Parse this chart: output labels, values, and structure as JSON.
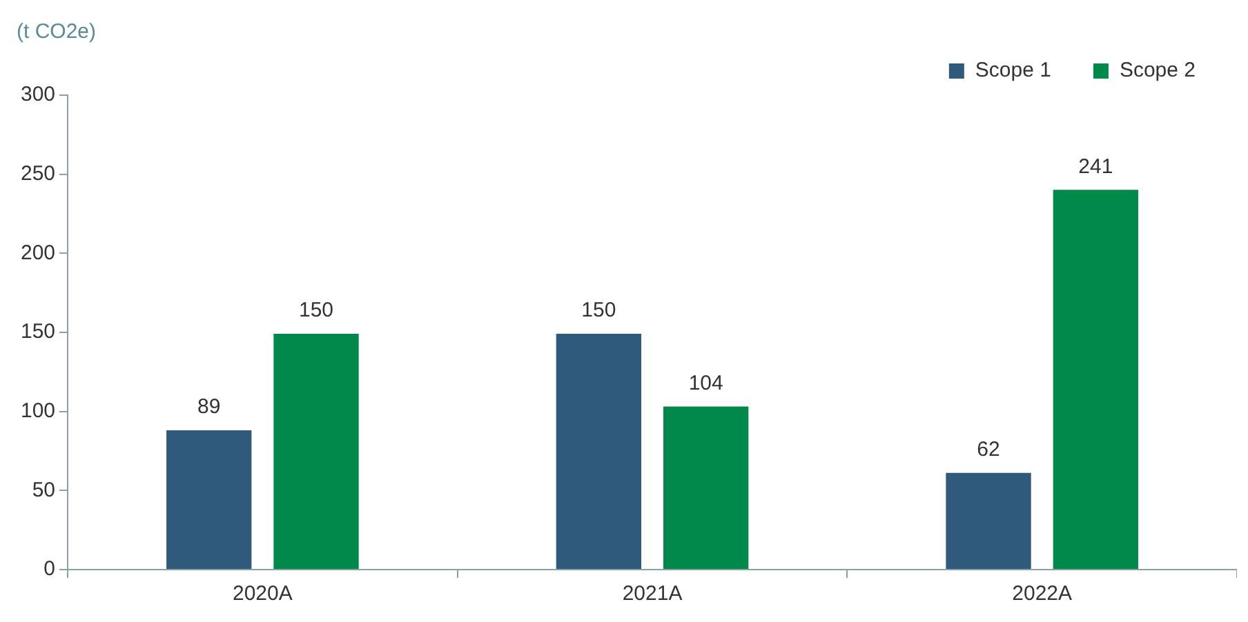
{
  "chart_data": {
    "type": "bar",
    "ylabel": "(t CO2e)",
    "categories": [
      "2020A",
      "2021A",
      "2022A"
    ],
    "series": [
      {
        "name": "Scope 1",
        "color": "#2f5a7c",
        "values": [
          89,
          150,
          62
        ]
      },
      {
        "name": "Scope 2",
        "color": "#00894a",
        "values": [
          150,
          104,
          241
        ]
      }
    ],
    "ylim": [
      0,
      300
    ],
    "yticks": [
      0,
      50,
      100,
      150,
      200,
      250,
      300
    ],
    "grid": false,
    "legend": "top right",
    "data_labels": true
  }
}
